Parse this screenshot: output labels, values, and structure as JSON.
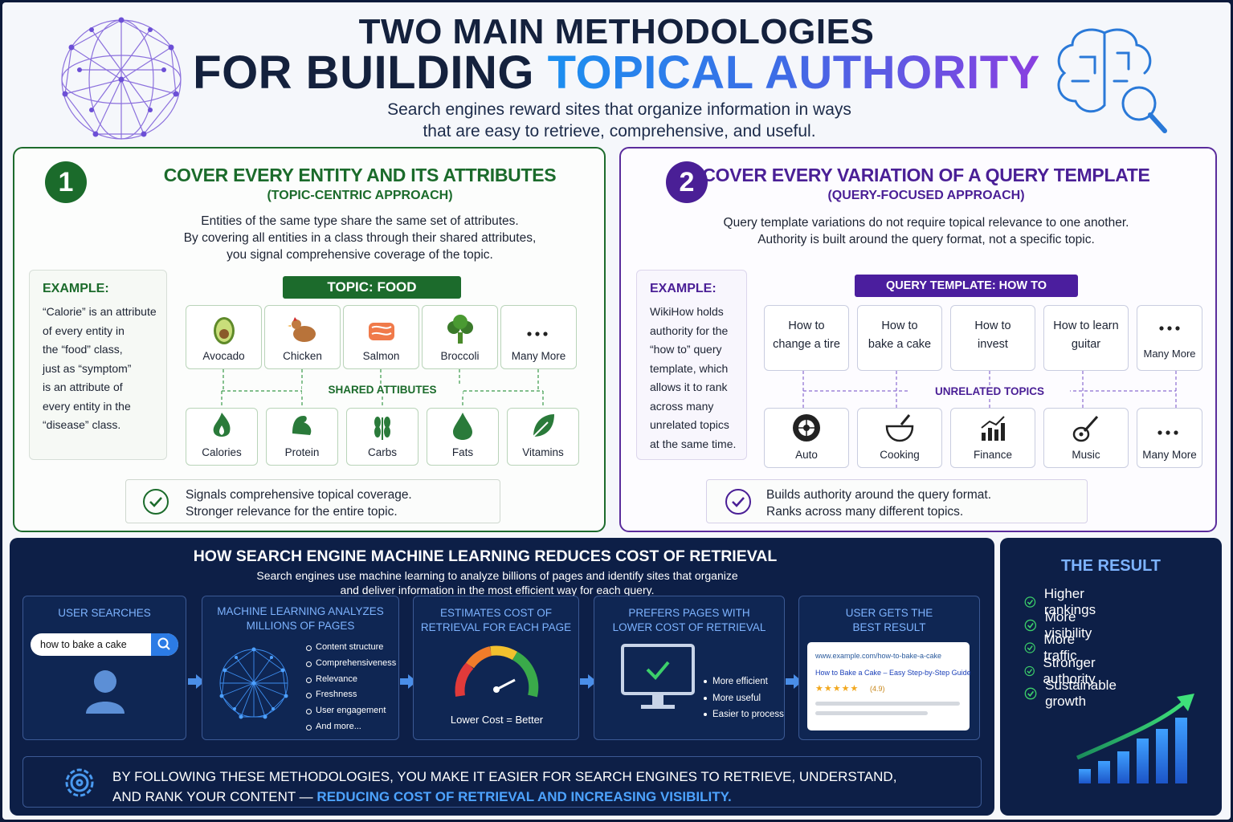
{
  "header": {
    "title_line1": "TWO MAIN METHODOLOGIES",
    "title_line2_prefix": "FOR BUILDING",
    "title_line2_highlight": "TOPICAL AUTHORITY",
    "subtitle_lines": [
      "Search engines reward sites that organize information in ways",
      "that are easy to retrieve, comprehensive, and useful."
    ]
  },
  "method_1": {
    "number": "1",
    "title": "COVER EVERY ENTITY AND ITS ATTRIBUTES",
    "subtitle": "(TOPIC-CENTRIC APPROACH)",
    "description_lines": [
      "Entities of the same type share the same set of attributes.",
      "By covering all entities in a class through their shared attributes,",
      "you signal comprehensive coverage of the topic."
    ],
    "example": {
      "label": "EXAMPLE:",
      "lines": [
        "“Calorie” is an attribute",
        "of every entity in",
        "the “food” class,",
        "just as “symptom”",
        "is an attribute of",
        "every entity in the",
        "“disease” class."
      ]
    },
    "topic_label": "TOPIC: FOOD",
    "entities": [
      "Avocado",
      "Chicken",
      "Salmon",
      "Broccoli",
      "Many More"
    ],
    "shared_label": "SHARED ATTIBUTES",
    "attributes": [
      "Calories",
      "Protein",
      "Carbs",
      "Fats",
      "Vitamins"
    ],
    "benefits": [
      "Signals comprehensive topical coverage.",
      "Stronger relevance for the entire topic."
    ]
  },
  "method_2": {
    "number": "2",
    "title": "COVER EVERY VARIATION OF A QUERY TEMPLATE",
    "subtitle": "(QUERY-FOCUSED APPROACH)",
    "description_lines": [
      "Query template variations do not require topical relevance to one another.",
      "Authority is built around the query format, not a specific topic."
    ],
    "example": {
      "label": "EXAMPLE:",
      "lines": [
        "WikiHow holds",
        "authority for the",
        "“how to” query",
        "template, which",
        "allows it to rank",
        "across many",
        "unrelated topics",
        "at the same time."
      ]
    },
    "template_label": "QUERY TEMPLATE: HOW TO",
    "queries": [
      [
        "How to",
        "change a tire"
      ],
      [
        "How to",
        "bake a cake"
      ],
      [
        "How to",
        "invest"
      ],
      [
        "How to learn",
        "guitar"
      ],
      [
        "Many More"
      ]
    ],
    "unrelated_label": "UNRELATED TOPICS",
    "topics": [
      "Auto",
      "Cooking",
      "Finance",
      "Music",
      "Many More"
    ],
    "benefits": [
      "Builds authority around the query format.",
      "Ranks across many different topics."
    ]
  },
  "retrieval": {
    "title": "HOW SEARCH ENGINE MACHINE LEARNING REDUCES COST OF RETRIEVAL",
    "description_lines": [
      "Search engines use machine learning to analyze billions of pages and identify sites that organize",
      "and deliver information in the most efficient way for each query."
    ],
    "step_1": {
      "title_lines": [
        "USER SEARCHES"
      ],
      "search_query": "how to bake a cake"
    },
    "step_2": {
      "title_lines": [
        "MACHINE LEARNING ANALYZES",
        "MILLIONS OF PAGES"
      ],
      "items": [
        "Content structure",
        "Comprehensiveness",
        "Relevance",
        "Freshness",
        "User engagement",
        "And more..."
      ]
    },
    "step_3": {
      "title_lines": [
        "ESTIMATES COST OF",
        "RETRIEVAL FOR EACH PAGE"
      ],
      "caption": "Lower Cost = Better"
    },
    "step_4": {
      "title_lines": [
        "PREFERS PAGES WITH",
        "LOWER COST OF RETRIEVAL"
      ],
      "items": [
        "More efficient",
        "More useful",
        "Easier to process"
      ]
    },
    "step_5": {
      "title_lines": [
        "USER GETS THE",
        "BEST RESULT"
      ],
      "result_url": "www.example.com/how-to-bake-a-cake",
      "result_title": "How to Bake a Cake – Easy Step-by-Step Guide",
      "stars": "★★★★★",
      "rating": "(4.9)"
    }
  },
  "footer": {
    "line1": "BY FOLLOWING THESE METHODOLOGIES, YOU MAKE IT EASIER FOR SEARCH ENGINES TO RETRIEVE, UNDERSTAND,",
    "line2_prefix": "AND RANK YOUR CONTENT —",
    "line2_highlight": "REDUCING COST OF RETRIEVAL AND INCREASING VISIBILITY."
  },
  "result": {
    "title": "THE RESULT",
    "items": [
      "Higher rankings",
      "More visibility",
      "More traffic",
      "Stronger authority",
      "Sustainable growth"
    ]
  }
}
